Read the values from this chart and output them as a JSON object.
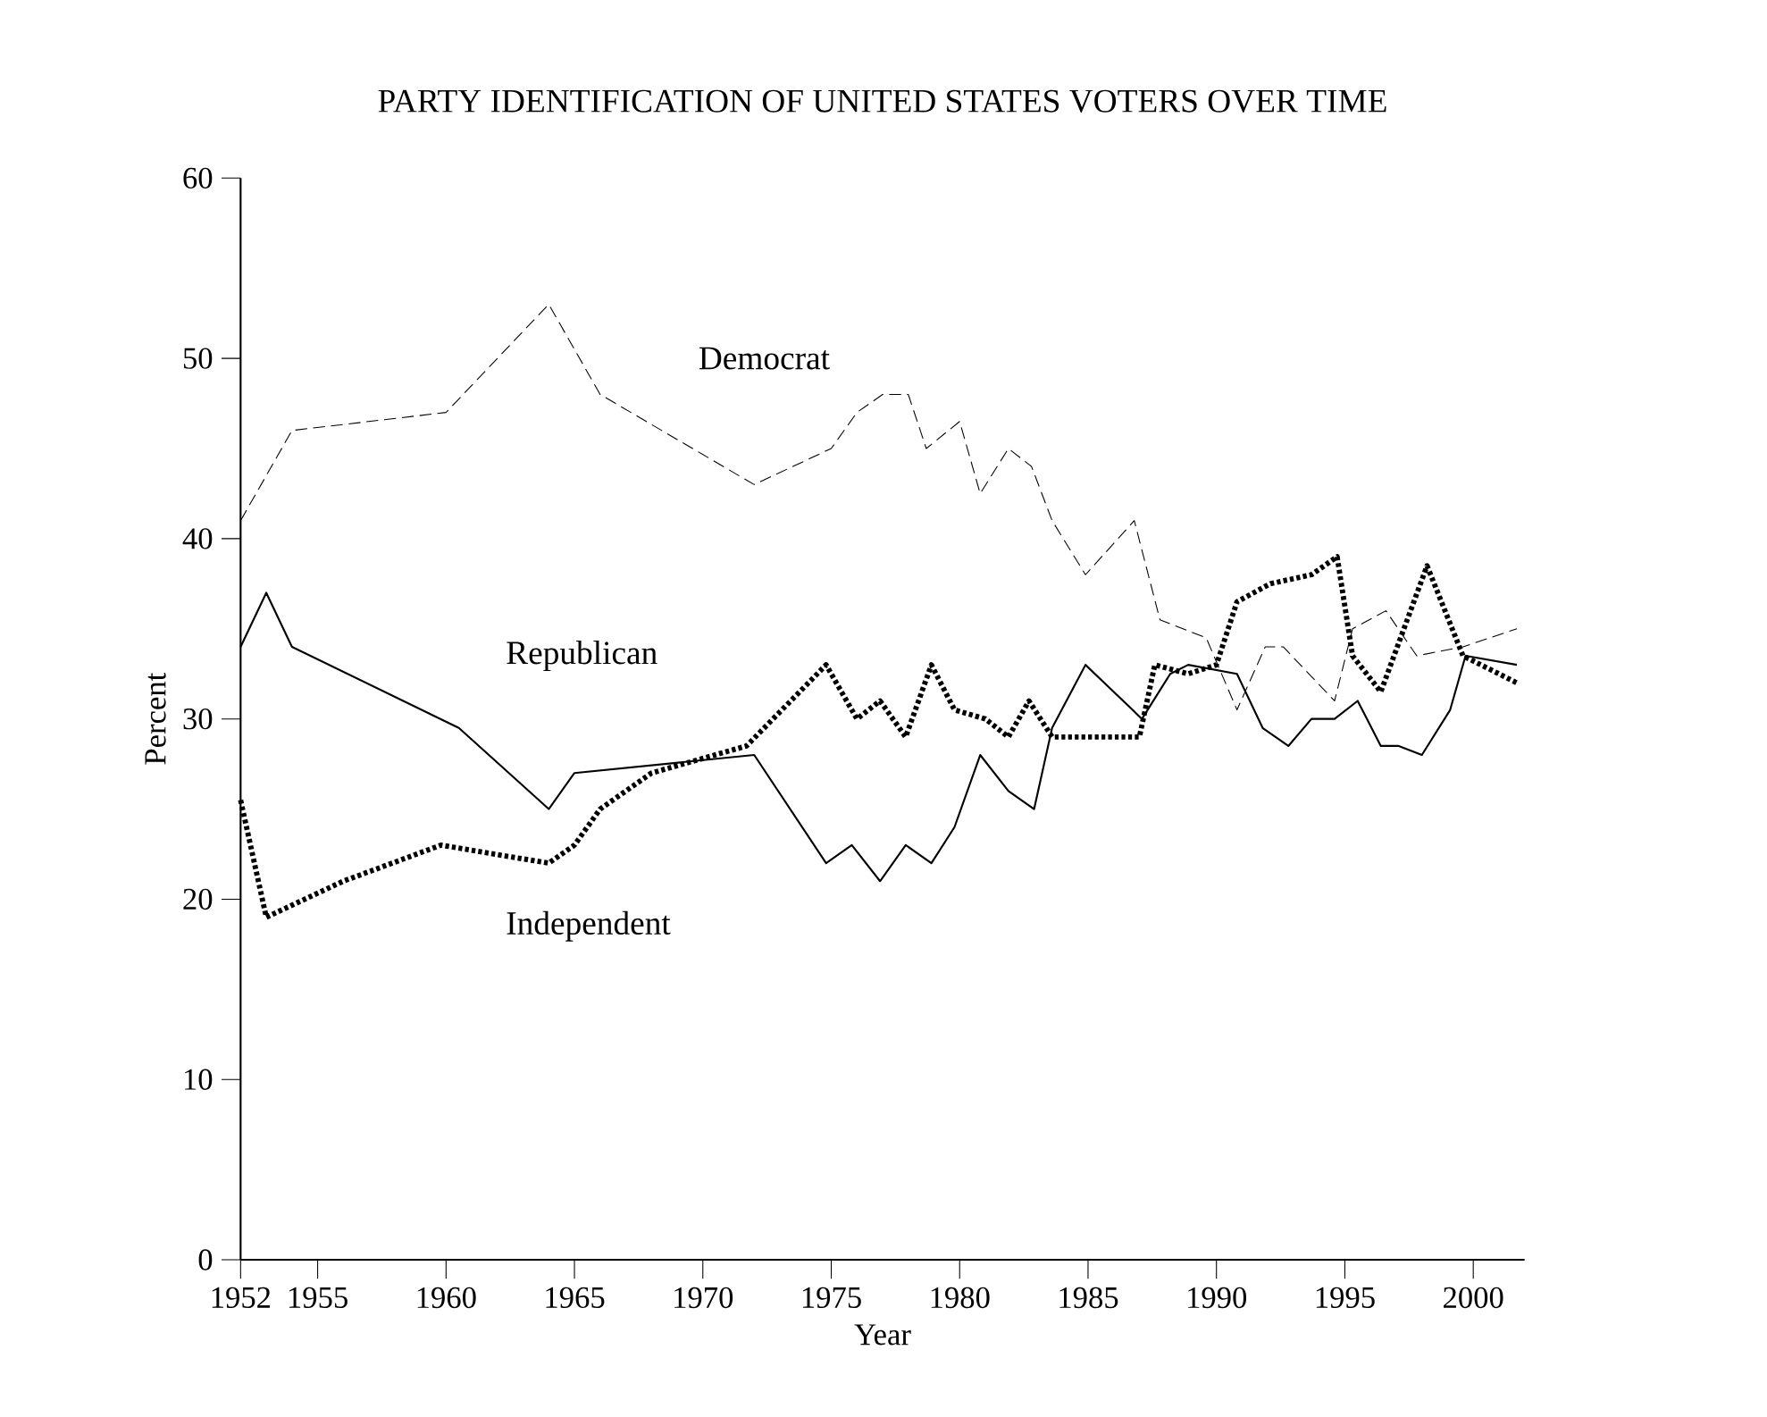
{
  "chart_data": {
    "type": "line",
    "title": "PARTY IDENTIFICATION OF UNITED STATES VOTERS OVER TIME",
    "xlabel": "Year",
    "ylabel": "Percent",
    "xlim": [
      1952,
      2002
    ],
    "xticks": [
      1952,
      1955,
      1960,
      1965,
      1970,
      1975,
      1980,
      1985,
      1990,
      1995,
      2000
    ],
    "ylim": [
      0,
      60
    ],
    "yticks": [
      0,
      10,
      20,
      30,
      40,
      50,
      60
    ],
    "grid": false,
    "legend": false,
    "marker": "none",
    "series": [
      {
        "name": "Democrat",
        "color": "#000000",
        "line_style": "dashed",
        "x": [
          1952,
          1954,
          1960,
          1964,
          1966,
          1972,
          1975,
          1976,
          1977,
          1978,
          1978.7,
          1980,
          1980.8,
          1981.9,
          1982.8,
          1983.6,
          1984.9,
          1986.8,
          1987.8,
          1989.6,
          1990.8,
          1991.9,
          1992.6,
          1994.6,
          1995.3,
          1996.6,
          1997.8,
          1999.6,
          2001.7
        ],
        "values": [
          41,
          46,
          47,
          53,
          48,
          43,
          45,
          47,
          48,
          48,
          45,
          46.5,
          42.5,
          45,
          44,
          41,
          38,
          41,
          35.5,
          34.5,
          30.5,
          34,
          34,
          31,
          35,
          36,
          33.5,
          34,
          35
        ]
      },
      {
        "name": "Republican",
        "color": "#000000",
        "line_style": "solid",
        "x": [
          1952,
          1953,
          1954,
          1960.5,
          1964,
          1965,
          1972,
          1974.8,
          1975.8,
          1976.9,
          1977.9,
          1978.9,
          1979.8,
          1980.8,
          1981.9,
          1982.9,
          1983.6,
          1984.9,
          1987.1,
          1988.2,
          1988.9,
          1990.8,
          1991.8,
          1992.8,
          1993.7,
          1994.6,
          1995.5,
          1996.4,
          1997.1,
          1998,
          1999.1,
          1999.7,
          2001.7
        ],
        "values": [
          34,
          37,
          34,
          29.5,
          25,
          27,
          28,
          22,
          23,
          21,
          23,
          22,
          24,
          28,
          26,
          25,
          29.5,
          33,
          30,
          32.5,
          33,
          32.5,
          29.5,
          28.5,
          30,
          30,
          31,
          28.5,
          28.5,
          28,
          30.5,
          33.5,
          33
        ]
      },
      {
        "name": "Independent",
        "color": "#000000",
        "line_style": "dotted",
        "x": [
          1952,
          1953,
          1956,
          1959.8,
          1964,
          1965,
          1966,
          1968,
          1971.7,
          1974.8,
          1976,
          1976.9,
          1977.9,
          1978.9,
          1979.8,
          1981,
          1981.9,
          1982.7,
          1983.6,
          1987,
          1987.6,
          1988.9,
          1990,
          1990.8,
          1992.1,
          1993.7,
          1994.7,
          1995.3,
          1996.4,
          1998.2,
          1999.6,
          2001.7
        ],
        "values": [
          25.5,
          19,
          21,
          23,
          22,
          23,
          25,
          27,
          28.5,
          33,
          30,
          31,
          29,
          33,
          30.5,
          30,
          29,
          31,
          29,
          29,
          33,
          32.5,
          33,
          36.5,
          37.5,
          38,
          39,
          33.5,
          31.5,
          38.5,
          33.5,
          32
        ]
      }
    ]
  }
}
